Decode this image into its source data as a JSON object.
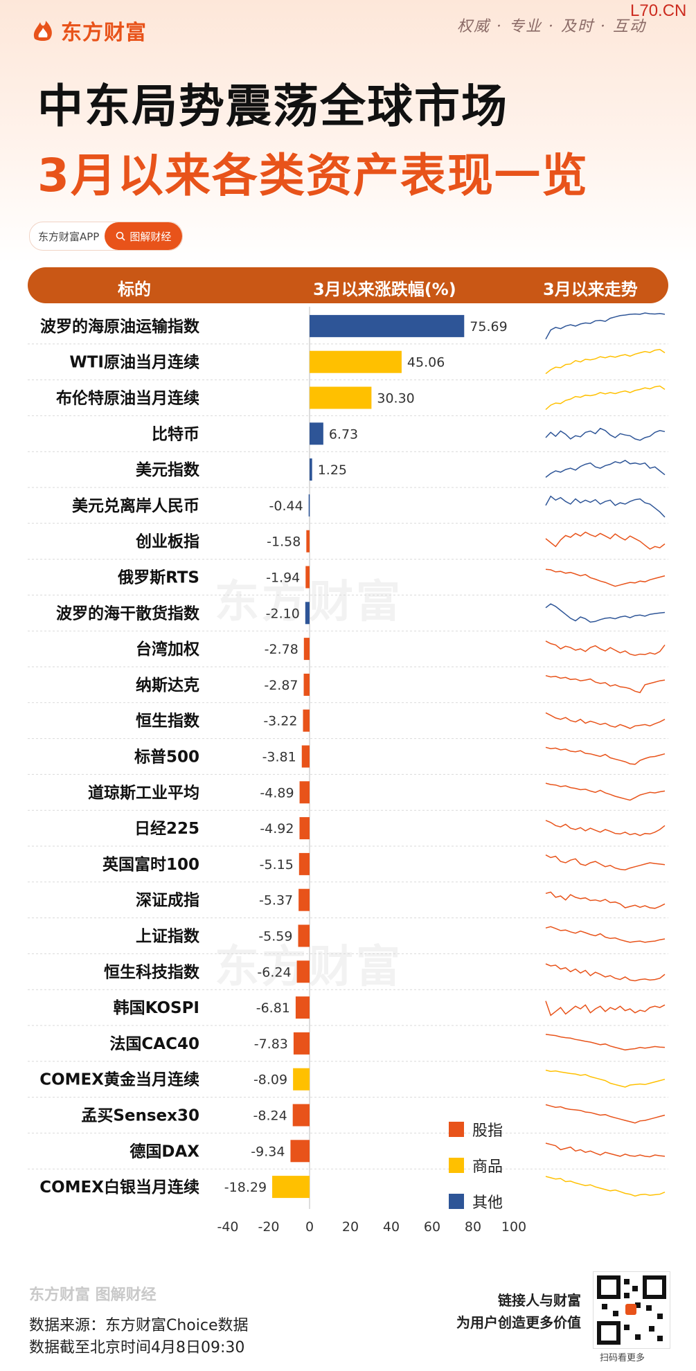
{
  "header": {
    "brand": "东方财富",
    "slogan": "权威 · 专业 · 及时 · 互动",
    "watermark": "L70.CN",
    "title_line1": "中东局势震荡全球市场",
    "title_line2": "3月以来各类资产表现一览",
    "app_label": "东方财富APP",
    "app_tag": "图解财经"
  },
  "table_header": {
    "col1": "标的",
    "col2": "3月以来涨跌幅(%)",
    "col3": "3月以来走势"
  },
  "body_watermark": "东方财富",
  "colors": {
    "股指": "#e8531a",
    "商品": "#ffc000",
    "其他": "#2e5597"
  },
  "chart_data": {
    "type": "bar",
    "orientation": "horizontal",
    "categories": [
      "波罗的海原油运输指数",
      "WTI原油当月连续",
      "布伦特原油当月连续",
      "比特币",
      "美元指数",
      "美元兑离岸人民币",
      "创业板指",
      "俄罗斯RTS",
      "波罗的海干散货指数",
      "台湾加权",
      "纳斯达克",
      "恒生指数",
      "标普500",
      "道琼斯工业平均",
      "日经225",
      "英国富时100",
      "深证成指",
      "上证指数",
      "恒生科技指数",
      "韩国KOSPI",
      "法国CAC40",
      "COMEX黄金当月连续",
      "孟买Sensex30",
      "德国DAX",
      "COMEX白银当月连续"
    ],
    "values": [
      75.69,
      45.06,
      30.3,
      6.73,
      1.25,
      -0.44,
      -1.58,
      -1.94,
      -2.1,
      -2.78,
      -2.87,
      -3.22,
      -3.81,
      -4.89,
      -4.92,
      -5.15,
      -5.37,
      -5.59,
      -6.24,
      -6.81,
      -7.83,
      -8.09,
      -8.24,
      -9.34,
      -18.29
    ],
    "labels": [
      "75.69",
      "45.06",
      "30.30",
      "6.73",
      "1.25",
      "-0.44",
      "-1.58",
      "-1.94",
      "-2.10",
      "-2.78",
      "-2.87",
      "-3.22",
      "-3.81",
      "-4.89",
      "-4.92",
      "-5.15",
      "-5.37",
      "-5.59",
      "-6.24",
      "-6.81",
      "-7.83",
      "-8.09",
      "-8.24",
      "-9.34",
      "-18.29"
    ],
    "groups": [
      "其他",
      "商品",
      "商品",
      "其他",
      "其他",
      "其他",
      "股指",
      "股指",
      "其他",
      "股指",
      "股指",
      "股指",
      "股指",
      "股指",
      "股指",
      "股指",
      "股指",
      "股指",
      "股指",
      "股指",
      "股指",
      "商品",
      "股指",
      "股指",
      "商品"
    ],
    "xlim": [
      -40,
      100
    ],
    "xticks": [
      "-40",
      "-20",
      "0",
      "20",
      "40",
      "60",
      "80",
      "100"
    ],
    "legend": [
      "股指",
      "商品",
      "其他"
    ],
    "legend_position": "bottom-right",
    "sparkline_trend": [
      [
        0.0,
        0.35,
        0.45,
        0.4,
        0.5,
        0.55,
        0.5,
        0.58,
        0.62,
        0.6,
        0.7,
        0.72,
        0.68,
        0.8,
        0.85,
        0.9,
        0.92,
        0.95,
        0.96,
        0.95,
        1.0,
        0.97,
        0.96,
        0.98,
        0.95
      ],
      [
        0.05,
        0.2,
        0.3,
        0.28,
        0.4,
        0.42,
        0.55,
        0.5,
        0.6,
        0.58,
        0.62,
        0.7,
        0.66,
        0.72,
        0.68,
        0.74,
        0.78,
        0.72,
        0.8,
        0.85,
        0.9,
        0.86,
        0.95,
        0.98,
        0.85
      ],
      [
        0.05,
        0.22,
        0.3,
        0.28,
        0.4,
        0.45,
        0.55,
        0.52,
        0.6,
        0.58,
        0.62,
        0.7,
        0.65,
        0.7,
        0.66,
        0.72,
        0.76,
        0.7,
        0.78,
        0.82,
        0.88,
        0.84,
        0.92,
        0.95,
        0.82
      ],
      [
        0.35,
        0.55,
        0.4,
        0.6,
        0.48,
        0.3,
        0.42,
        0.38,
        0.55,
        0.6,
        0.5,
        0.7,
        0.62,
        0.45,
        0.35,
        0.5,
        0.45,
        0.42,
        0.3,
        0.25,
        0.35,
        0.4,
        0.55,
        0.62,
        0.58
      ],
      [
        0.2,
        0.35,
        0.45,
        0.4,
        0.5,
        0.55,
        0.48,
        0.62,
        0.7,
        0.75,
        0.6,
        0.55,
        0.65,
        0.7,
        0.8,
        0.75,
        0.85,
        0.72,
        0.75,
        0.7,
        0.75,
        0.55,
        0.6,
        0.45,
        0.3
      ],
      [
        0.5,
        0.85,
        0.7,
        0.8,
        0.65,
        0.55,
        0.75,
        0.6,
        0.7,
        0.62,
        0.72,
        0.55,
        0.65,
        0.7,
        0.5,
        0.6,
        0.55,
        0.65,
        0.72,
        0.75,
        0.6,
        0.55,
        0.4,
        0.25,
        0.05
      ],
      [
        0.6,
        0.45,
        0.3,
        0.55,
        0.72,
        0.65,
        0.8,
        0.7,
        0.85,
        0.75,
        0.68,
        0.8,
        0.7,
        0.6,
        0.78,
        0.65,
        0.55,
        0.7,
        0.6,
        0.5,
        0.35,
        0.2,
        0.3,
        0.25,
        0.4
      ],
      [
        0.8,
        0.78,
        0.7,
        0.72,
        0.65,
        0.68,
        0.62,
        0.55,
        0.6,
        0.48,
        0.42,
        0.35,
        0.3,
        0.22,
        0.15,
        0.2,
        0.25,
        0.3,
        0.28,
        0.35,
        0.32,
        0.4,
        0.45,
        0.5,
        0.55
      ],
      [
        0.7,
        0.85,
        0.75,
        0.6,
        0.45,
        0.3,
        0.2,
        0.35,
        0.28,
        0.15,
        0.18,
        0.25,
        0.3,
        0.32,
        0.28,
        0.35,
        0.38,
        0.32,
        0.4,
        0.42,
        0.38,
        0.45,
        0.48,
        0.5,
        0.52
      ],
      [
        0.8,
        0.7,
        0.65,
        0.5,
        0.6,
        0.55,
        0.45,
        0.5,
        0.4,
        0.55,
        0.62,
        0.5,
        0.42,
        0.55,
        0.45,
        0.35,
        0.42,
        0.3,
        0.25,
        0.3,
        0.28,
        0.35,
        0.3,
        0.4,
        0.65
      ],
      [
        0.85,
        0.8,
        0.82,
        0.75,
        0.78,
        0.7,
        0.72,
        0.65,
        0.68,
        0.72,
        0.6,
        0.55,
        0.58,
        0.45,
        0.5,
        0.42,
        0.4,
        0.35,
        0.25,
        0.2,
        0.5,
        0.55,
        0.6,
        0.65,
        0.68
      ],
      [
        0.8,
        0.7,
        0.6,
        0.55,
        0.62,
        0.5,
        0.45,
        0.55,
        0.4,
        0.48,
        0.42,
        0.35,
        0.4,
        0.3,
        0.25,
        0.35,
        0.28,
        0.2,
        0.3,
        0.32,
        0.35,
        0.3,
        0.38,
        0.45,
        0.55
      ],
      [
        0.85,
        0.8,
        0.82,
        0.75,
        0.78,
        0.7,
        0.68,
        0.72,
        0.62,
        0.6,
        0.55,
        0.5,
        0.58,
        0.45,
        0.4,
        0.35,
        0.3,
        0.22,
        0.2,
        0.35,
        0.42,
        0.48,
        0.5,
        0.55,
        0.6
      ],
      [
        0.85,
        0.8,
        0.78,
        0.72,
        0.75,
        0.68,
        0.65,
        0.6,
        0.62,
        0.55,
        0.5,
        0.58,
        0.48,
        0.42,
        0.35,
        0.3,
        0.25,
        0.2,
        0.3,
        0.4,
        0.45,
        0.5,
        0.48,
        0.52,
        0.55
      ],
      [
        0.8,
        0.72,
        0.6,
        0.55,
        0.65,
        0.5,
        0.45,
        0.52,
        0.4,
        0.5,
        0.42,
        0.35,
        0.45,
        0.38,
        0.3,
        0.28,
        0.35,
        0.25,
        0.3,
        0.22,
        0.3,
        0.28,
        0.35,
        0.45,
        0.6
      ],
      [
        0.85,
        0.75,
        0.8,
        0.6,
        0.55,
        0.65,
        0.7,
        0.5,
        0.45,
        0.55,
        0.6,
        0.5,
        0.4,
        0.45,
        0.35,
        0.3,
        0.28,
        0.35,
        0.4,
        0.45,
        0.5,
        0.55,
        0.52,
        0.5,
        0.48
      ],
      [
        0.75,
        0.8,
        0.6,
        0.65,
        0.5,
        0.7,
        0.6,
        0.55,
        0.58,
        0.48,
        0.5,
        0.45,
        0.52,
        0.4,
        0.42,
        0.35,
        0.2,
        0.25,
        0.3,
        0.22,
        0.28,
        0.2,
        0.18,
        0.25,
        0.35
      ],
      [
        0.8,
        0.85,
        0.78,
        0.7,
        0.72,
        0.65,
        0.6,
        0.68,
        0.62,
        0.55,
        0.5,
        0.58,
        0.45,
        0.4,
        0.42,
        0.35,
        0.3,
        0.25,
        0.28,
        0.3,
        0.25,
        0.28,
        0.3,
        0.35,
        0.38
      ],
      [
        0.8,
        0.72,
        0.75,
        0.6,
        0.65,
        0.5,
        0.6,
        0.45,
        0.55,
        0.35,
        0.48,
        0.4,
        0.3,
        0.35,
        0.25,
        0.2,
        0.3,
        0.18,
        0.15,
        0.2,
        0.22,
        0.18,
        0.2,
        0.25,
        0.4
      ],
      [
        0.75,
        0.2,
        0.35,
        0.5,
        0.25,
        0.4,
        0.55,
        0.45,
        0.6,
        0.3,
        0.45,
        0.55,
        0.35,
        0.5,
        0.42,
        0.55,
        0.38,
        0.45,
        0.3,
        0.4,
        0.35,
        0.5,
        0.55,
        0.5,
        0.6
      ],
      [
        0.85,
        0.82,
        0.8,
        0.75,
        0.72,
        0.7,
        0.65,
        0.62,
        0.58,
        0.55,
        0.5,
        0.45,
        0.48,
        0.4,
        0.35,
        0.3,
        0.25,
        0.28,
        0.3,
        0.35,
        0.32,
        0.35,
        0.38,
        0.36,
        0.35
      ],
      [
        0.85,
        0.8,
        0.82,
        0.78,
        0.75,
        0.72,
        0.7,
        0.65,
        0.68,
        0.6,
        0.55,
        0.5,
        0.45,
        0.35,
        0.3,
        0.25,
        0.2,
        0.28,
        0.3,
        0.32,
        0.3,
        0.35,
        0.4,
        0.45,
        0.5
      ],
      [
        0.9,
        0.85,
        0.8,
        0.82,
        0.75,
        0.72,
        0.7,
        0.68,
        0.62,
        0.6,
        0.55,
        0.5,
        0.52,
        0.45,
        0.4,
        0.35,
        0.3,
        0.25,
        0.2,
        0.28,
        0.3,
        0.35,
        0.4,
        0.45,
        0.5
      ],
      [
        0.8,
        0.75,
        0.7,
        0.55,
        0.6,
        0.65,
        0.5,
        0.55,
        0.45,
        0.5,
        0.42,
        0.35,
        0.45,
        0.4,
        0.35,
        0.3,
        0.38,
        0.32,
        0.3,
        0.35,
        0.3,
        0.28,
        0.35,
        0.32,
        0.3
      ],
      [
        0.9,
        0.85,
        0.8,
        0.82,
        0.7,
        0.72,
        0.65,
        0.6,
        0.55,
        0.58,
        0.5,
        0.45,
        0.4,
        0.35,
        0.38,
        0.32,
        0.25,
        0.22,
        0.15,
        0.2,
        0.22,
        0.18,
        0.2,
        0.22,
        0.3
      ]
    ]
  },
  "footer": {
    "brand": "东方财富 图解财经",
    "source": "数据来源：东方财富Choice数据",
    "date": "数据截至北京时间4月8日09:30",
    "slogan_line1": "链接人与财富",
    "slogan_line2": "为用户创造更多价值",
    "qr_caption": "扫码看更多"
  }
}
